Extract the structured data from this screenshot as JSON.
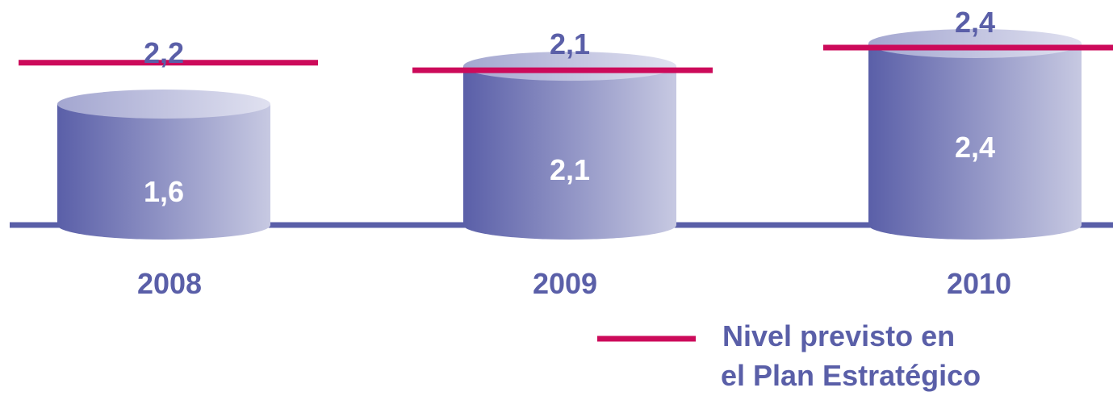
{
  "chart_data": {
    "type": "bar",
    "categories": [
      "2008",
      "2009",
      "2010"
    ],
    "series": [
      {
        "values": [
          1.6,
          2.1,
          2.4
        ],
        "labels": [
          "1,6",
          "2,1",
          "2,4"
        ]
      }
    ],
    "targets": {
      "name": "Nivel previsto en el Plan Estratégico",
      "values": [
        2.2,
        2.1,
        2.4
      ],
      "labels": [
        "2,2",
        "2,1",
        "2,4"
      ]
    },
    "legend": {
      "line1": "Nivel previsto en",
      "line2": "el Plan Estratégico",
      "placement": "bottom-right"
    },
    "ylim": [
      0,
      2.5
    ],
    "grid": false,
    "colors": {
      "cylinder_dark": "#5a5fa8",
      "cylinder_light": "#c7c9e2",
      "target_line": "#cc0a5a",
      "baseline": "#5a5fa8",
      "text_label": "#5a5fa8",
      "value_text": "#ffffff"
    }
  }
}
